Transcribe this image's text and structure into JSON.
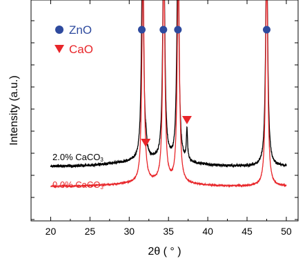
{
  "chart_data": {
    "type": "line",
    "title": "",
    "xlabel": "2θ ( ° )",
    "ylabel": "Intensity (a.u.)",
    "xlim": [
      17.5,
      51.5
    ],
    "xticks": [
      20,
      25,
      30,
      35,
      40,
      45,
      50
    ],
    "yticks_labeled": false,
    "grid": false,
    "series": [
      {
        "name": "2.0% CaCO3",
        "label_main": "2.0% CaCO",
        "label_sub": "3",
        "color": "#000000",
        "baseline": 0.0,
        "peaks": [
          {
            "x": 31.7,
            "height": 10.0
          },
          {
            "x": 32.15,
            "height": 0.4
          },
          {
            "x": 34.4,
            "height": 10.0
          },
          {
            "x": 36.2,
            "height": 10.0
          },
          {
            "x": 37.35,
            "height": 1.4
          },
          {
            "x": 47.5,
            "height": 10.0
          }
        ]
      },
      {
        "name": "0.0% CaCO3",
        "label_main": "0.0% CaCO",
        "label_sub": "3",
        "color": "#e8262a",
        "baseline": -0.6,
        "peaks": [
          {
            "x": 31.75,
            "height": 10.0
          },
          {
            "x": 34.4,
            "height": 10.0
          },
          {
            "x": 36.25,
            "height": 10.0
          },
          {
            "x": 47.5,
            "height": 10.0
          }
        ]
      }
    ],
    "markers": [
      {
        "label": "ZnO",
        "shape": "circle",
        "color": "#2e4a9e",
        "x": [
          31.6,
          34.35,
          36.2,
          47.5
        ]
      },
      {
        "label": "CaO",
        "shape": "triangle-down",
        "color": "#e8262a",
        "x": [
          32.1,
          37.35
        ]
      }
    ],
    "legend": [
      {
        "label": "ZnO",
        "shape": "circle",
        "color": "#2e4a9e"
      },
      {
        "label": "CaO",
        "shape": "triangle-down",
        "color": "#e8262a"
      }
    ],
    "legend_position": "top-left"
  }
}
